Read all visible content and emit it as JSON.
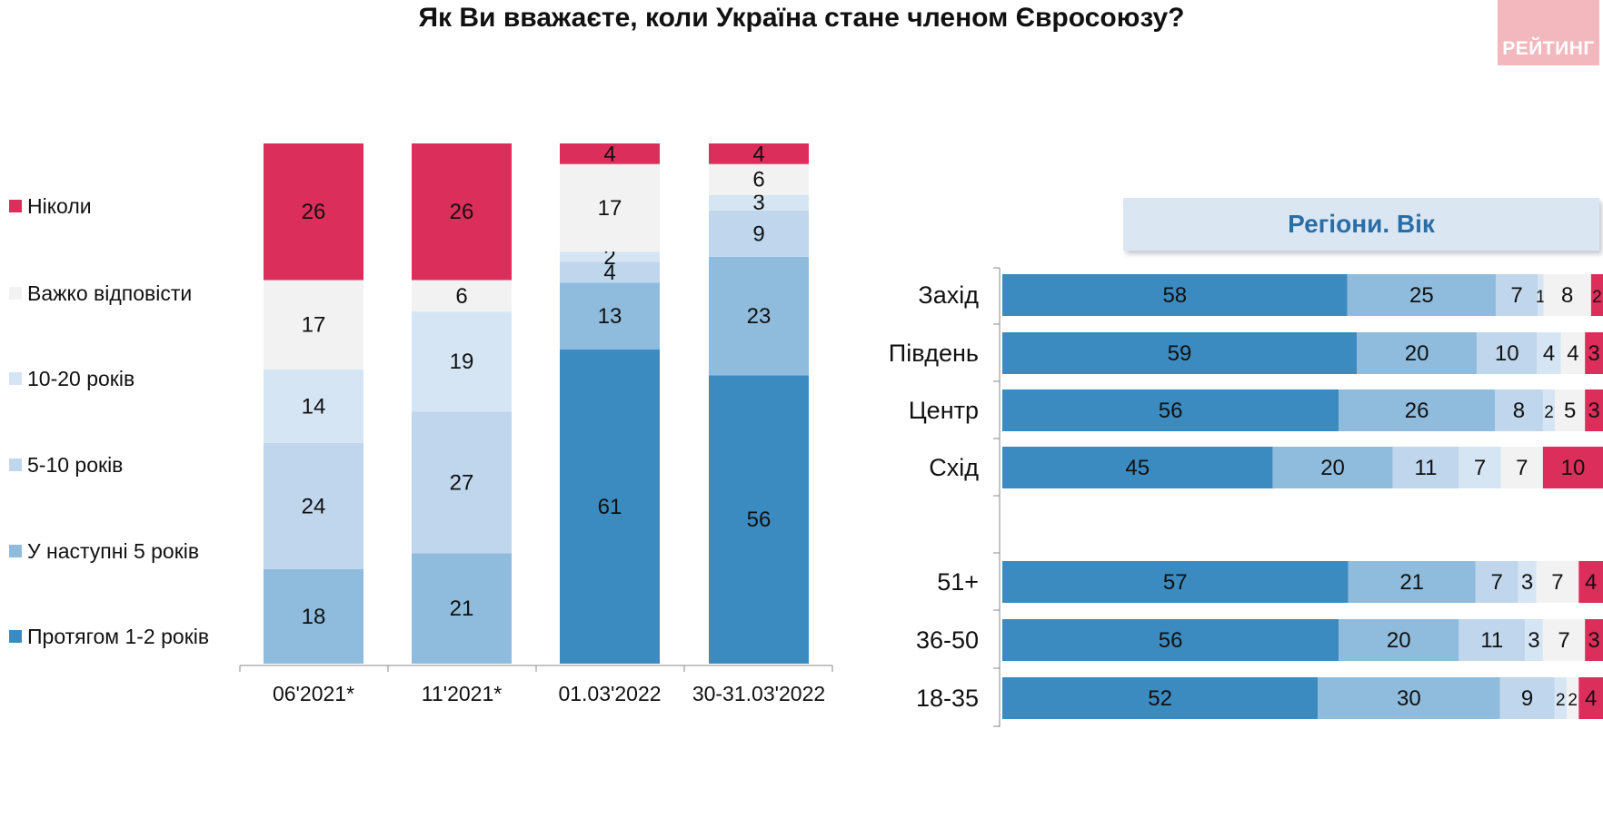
{
  "title": "Як Ви вважаєте, коли Україна стане членом Євросоюзу?",
  "logo": "РЕЙТИНГ",
  "panel_title": "Регіони. Вік",
  "colors": {
    "never": "#dc2e5a",
    "hard_to_say": "#f2f2f2",
    "ten_twenty": "#d6e5f3",
    "five_ten": "#bfd6ec",
    "next_five": "#8fbcdc",
    "one_two": "#3b8ac0"
  },
  "legend": [
    {
      "label": "Ніколи",
      "color": "#dc2e5a"
    },
    {
      "label": "Важко відповісти",
      "color": "#f2f2f2"
    },
    {
      "label": "10-20 років",
      "color": "#d6e5f3"
    },
    {
      "label": "5-10 років",
      "color": "#bfd6ec"
    },
    {
      "label": "У наступні 5 років",
      "color": "#8fbcdc"
    },
    {
      "label": "Протягом 1-2 років",
      "color": "#3b8ac0"
    }
  ],
  "chart_data": [
    {
      "type": "bar",
      "stacked": true,
      "orientation": "vertical",
      "categories": [
        "06'2021*",
        "11'2021*",
        "01.03'2022",
        "30-31.03'2022"
      ],
      "series": [
        {
          "name": "Протягом 1-2 років",
          "values": [
            0,
            0,
            61,
            56
          ]
        },
        {
          "name": "У наступні 5 років",
          "values": [
            18,
            21,
            13,
            23
          ]
        },
        {
          "name": "5-10 років",
          "values": [
            24,
            27,
            4,
            9
          ]
        },
        {
          "name": "10-20 років",
          "values": [
            14,
            19,
            2,
            3
          ]
        },
        {
          "name": "Важко відповісти",
          "values": [
            17,
            6,
            17,
            6
          ]
        },
        {
          "name": "Ніколи",
          "values": [
            26,
            26,
            4,
            4
          ]
        }
      ]
    },
    {
      "type": "bar",
      "stacked": true,
      "orientation": "horizontal",
      "title": "Регіони. Вік",
      "categories": [
        "Захід",
        "Південь",
        "Центр",
        "Схід",
        "51+",
        "36-50",
        "18-35"
      ],
      "series": [
        {
          "name": "Протягом 1-2 років",
          "values": [
            58,
            59,
            56,
            45,
            57,
            56,
            52
          ]
        },
        {
          "name": "У наступні 5 років",
          "values": [
            25,
            20,
            26,
            20,
            21,
            20,
            30
          ]
        },
        {
          "name": "5-10 років",
          "values": [
            7,
            10,
            8,
            11,
            7,
            11,
            9
          ]
        },
        {
          "name": "10-20 років",
          "values": [
            1,
            4,
            2,
            7,
            3,
            3,
            2
          ]
        },
        {
          "name": "Важко відповісти",
          "values": [
            8,
            4,
            5,
            7,
            7,
            7,
            2
          ]
        },
        {
          "name": "Ніколи",
          "values": [
            2,
            3,
            3,
            10,
            4,
            3,
            4
          ]
        }
      ]
    }
  ]
}
